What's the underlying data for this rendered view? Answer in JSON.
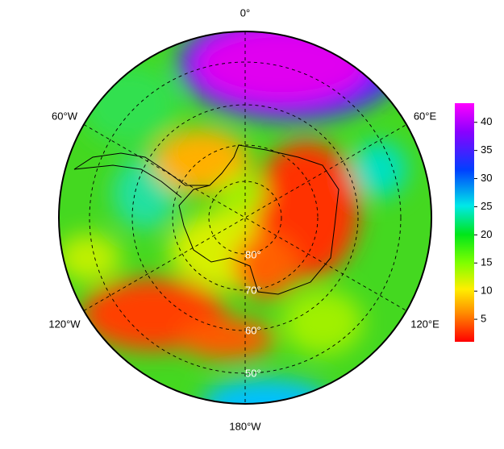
{
  "map": {
    "longitude_labels": [
      "0°",
      "60°E",
      "120°E",
      "180°W",
      "120°W",
      "60°W"
    ],
    "latitude_labels": [
      "80°",
      "70°",
      "60°",
      "50°"
    ]
  },
  "colorbar": {
    "lim": [
      1,
      43.4
    ],
    "ticks": [
      5,
      10,
      15,
      20,
      25,
      30,
      35,
      40
    ]
  }
}
